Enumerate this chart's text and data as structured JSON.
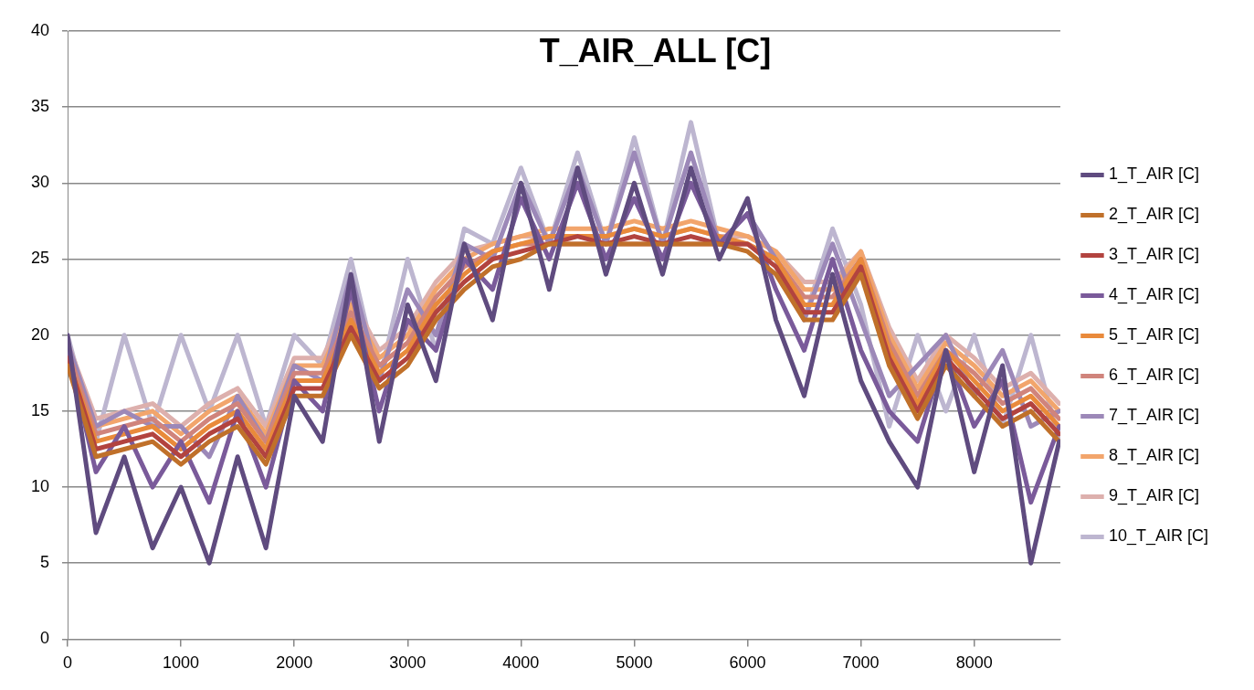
{
  "chart_data": {
    "type": "line",
    "title": "T_AIR_ALL [C]",
    "x": [
      0,
      250,
      500,
      750,
      1000,
      1250,
      1500,
      1750,
      2000,
      2250,
      2500,
      2750,
      3000,
      3250,
      3500,
      3750,
      4000,
      4250,
      4500,
      4750,
      5000,
      5250,
      5500,
      5750,
      6000,
      6250,
      6500,
      6750,
      7000,
      7250,
      7500,
      7750,
      8000,
      8250,
      8500,
      8750
    ],
    "xlim": [
      0,
      8760
    ],
    "xticks": [
      0,
      1000,
      2000,
      3000,
      4000,
      5000,
      6000,
      7000,
      8000
    ],
    "ylim": [
      0,
      40
    ],
    "yticks": [
      0,
      5,
      10,
      15,
      20,
      25,
      30,
      35,
      40
    ],
    "grid": "y",
    "legend": "right",
    "marker": "none",
    "line_style": "solid",
    "series": [
      {
        "name": "1_T_AIR [C]",
        "color": "#5f4b7f",
        "values": [
          20,
          7,
          12,
          6,
          10,
          5,
          12,
          6,
          16,
          13,
          24,
          13,
          22,
          17,
          26,
          21,
          30,
          23,
          31,
          24,
          30,
          24,
          31,
          25,
          29,
          21,
          16,
          24,
          17,
          13,
          10,
          19,
          11,
          18,
          5,
          13
        ]
      },
      {
        "name": "2_T_AIR [C]",
        "color": "#c0702a",
        "values": [
          18,
          12,
          12.5,
          13,
          11.5,
          13,
          14,
          11.5,
          16,
          16,
          20,
          16.5,
          18,
          21,
          23,
          24.5,
          25,
          26,
          26,
          26,
          26,
          26,
          26,
          26,
          25.5,
          24,
          21,
          21,
          24,
          18,
          14.5,
          18,
          16,
          14,
          15,
          13
        ]
      },
      {
        "name": "3_T_AIR [C]",
        "color": "#b2433f",
        "values": [
          18.5,
          12.5,
          13,
          13.5,
          12,
          13.5,
          14.5,
          12,
          16.5,
          16.5,
          20.5,
          17,
          18.5,
          21.5,
          23.5,
          25,
          25.5,
          26,
          26.5,
          26,
          26.5,
          26,
          26.5,
          26,
          26,
          24.5,
          21.5,
          21.5,
          24.5,
          18.5,
          15,
          18.5,
          16.5,
          14.5,
          15.5,
          13.5
        ]
      },
      {
        "name": "4_T_AIR [C]",
        "color": "#7a5a9a",
        "values": [
          19,
          11,
          14,
          10,
          13,
          9,
          15,
          10,
          17,
          15,
          23,
          15,
          21,
          19,
          25,
          23,
          29,
          25,
          30,
          25,
          29,
          25,
          30,
          26,
          28,
          23,
          19,
          25,
          19,
          15,
          13,
          19,
          14,
          17,
          9,
          14
        ]
      },
      {
        "name": "5_T_AIR [C]",
        "color": "#e98a3b",
        "values": [
          18.5,
          13,
          13.5,
          14,
          12.5,
          14,
          15,
          12.5,
          17,
          17,
          21,
          17.5,
          19,
          22,
          24,
          25.5,
          26,
          26.5,
          26.5,
          26.5,
          27,
          26.5,
          27,
          26.5,
          26,
          25,
          22,
          22,
          25,
          19,
          15.5,
          19,
          17,
          15,
          16,
          14
        ]
      },
      {
        "name": "6_T_AIR [C]",
        "color": "#d0847c",
        "values": [
          19,
          13.5,
          14,
          14.5,
          13,
          14.5,
          15.5,
          13,
          17.5,
          17.5,
          21.5,
          18,
          19.5,
          22.5,
          24.5,
          25.5,
          26,
          26,
          26,
          26,
          26,
          26,
          26,
          26,
          26,
          25,
          22.5,
          22.5,
          25,
          19.5,
          16,
          19,
          17.5,
          15.5,
          16.5,
          14.5
        ]
      },
      {
        "name": "7_T_AIR [C]",
        "color": "#9c88b8",
        "values": [
          19.5,
          14,
          15,
          14,
          14,
          12,
          16,
          13,
          18,
          17,
          24,
          17,
          23,
          20,
          26,
          25,
          30,
          26,
          31,
          26,
          32,
          26,
          32,
          26,
          28,
          25,
          21,
          26,
          21,
          16,
          18,
          20,
          16,
          19,
          14,
          15
        ]
      },
      {
        "name": "8_T_AIR [C]",
        "color": "#f2a56c",
        "values": [
          19,
          14,
          14.5,
          15,
          13.5,
          15,
          16,
          13.5,
          18,
          18,
          22,
          18.5,
          20,
          23,
          25,
          26,
          26.5,
          27,
          27,
          27,
          27.5,
          27,
          27.5,
          27,
          26.5,
          25.5,
          23,
          23,
          25.5,
          20,
          16.5,
          19.5,
          18,
          16,
          17,
          15
        ]
      },
      {
        "name": "9_T_AIR [C]",
        "color": "#ddb0ad",
        "values": [
          19.5,
          14.5,
          15,
          15.5,
          14,
          15.5,
          16.5,
          14,
          18.5,
          18.5,
          22.5,
          19,
          20.5,
          23.5,
          25.5,
          26,
          26.5,
          26.5,
          26.5,
          26.5,
          27,
          26.5,
          27,
          26.5,
          26.5,
          25.5,
          23.5,
          23.5,
          25.5,
          20.5,
          17,
          20,
          18.5,
          16.5,
          17.5,
          15.5
        ]
      },
      {
        "name": "10_T_AIR [C]",
        "color": "#bdb6d0",
        "values": [
          20,
          13,
          20,
          14,
          20,
          15,
          20,
          14,
          20,
          18,
          25,
          17,
          25,
          19,
          27,
          26,
          31,
          26,
          32,
          26,
          33,
          26,
          34,
          26,
          28,
          25,
          21,
          27,
          22,
          14,
          20,
          15,
          20,
          14,
          20,
          13
        ]
      }
    ]
  }
}
